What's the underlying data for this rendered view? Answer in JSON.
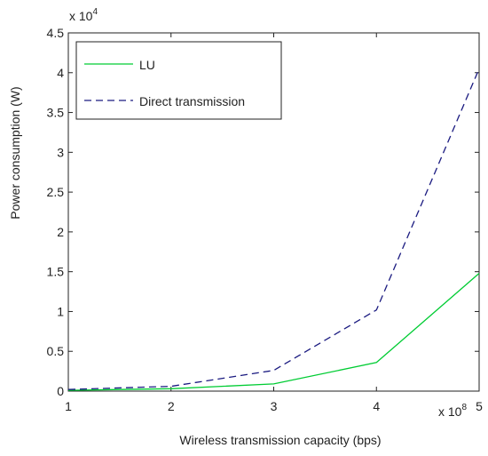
{
  "chart_data": {
    "type": "line",
    "xlabel": "Wireless transmission capacity (bps)",
    "ylabel": "Power consumption (W)",
    "x_multiplier": "x 10",
    "x_exponent": "8",
    "y_multiplier": "x 10",
    "y_exponent": "4",
    "xlim": [
      1,
      5
    ],
    "ylim": [
      0,
      4.5
    ],
    "x_ticks": [
      "1",
      "2",
      "3",
      "4",
      "5"
    ],
    "y_ticks": [
      "0",
      "0.5",
      "1",
      "1.5",
      "2",
      "2.5",
      "3",
      "3.5",
      "4",
      "4.5"
    ],
    "legend_position": "top-left",
    "grid": false,
    "series": [
      {
        "name": "LU",
        "color": "#00cc33",
        "style": "solid",
        "x": [
          1,
          2,
          3,
          4,
          5
        ],
        "y": [
          0.01,
          0.03,
          0.09,
          0.36,
          1.48
        ]
      },
      {
        "name": "Direct transmission",
        "color": "#1a1a80",
        "style": "dashed",
        "x": [
          1,
          2,
          3,
          4,
          5
        ],
        "y": [
          0.02,
          0.06,
          0.26,
          1.02,
          4.05
        ]
      }
    ]
  }
}
